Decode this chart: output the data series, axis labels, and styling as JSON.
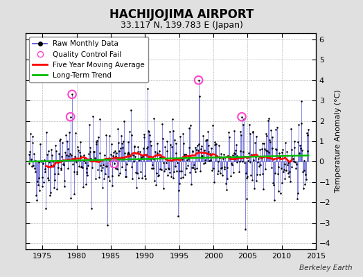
{
  "title": "HACHIJOJIMA AIRPORT",
  "subtitle": "33.117 N, 139.783 E (Japan)",
  "ylabel": "Temperature Anomaly (°C)",
  "watermark": "Berkeley Earth",
  "xlim": [
    1972.5,
    2015.0
  ],
  "ylim": [
    -4.3,
    6.3
  ],
  "yticks": [
    -4,
    -3,
    -2,
    -1,
    0,
    1,
    2,
    3,
    4,
    5,
    6
  ],
  "xticks": [
    1975,
    1980,
    1985,
    1990,
    1995,
    2000,
    2005,
    2010,
    2015
  ],
  "bg_color": "#e0e0e0",
  "plot_bg_color": "#ffffff",
  "line_color": "#4444cc",
  "dot_color": "#000000",
  "ma_color": "#ff0000",
  "trend_color": "#00bb00",
  "qc_color": "#ff44cc",
  "seed": 42
}
